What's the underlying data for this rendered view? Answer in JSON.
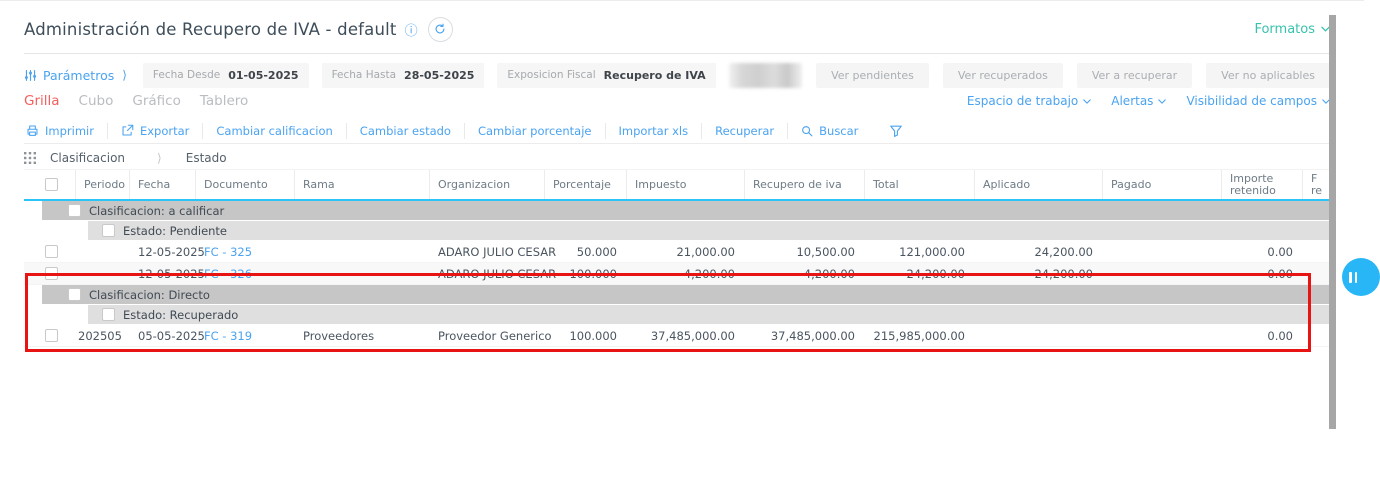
{
  "header": {
    "title": "Administración de Recupero de IVA - default",
    "formatos_menu": "Formatos"
  },
  "colors": {
    "accent_blue": "#4aa3f0",
    "formatos_teal": "#38c2ad",
    "active_tab_red": "#f4605e",
    "header_underline_cyan": "#29c5f6",
    "annotation_red": "#e81414",
    "group_row_dark": "#c6c6c6",
    "group_row_light": "#dfdfdf",
    "side_handle_blue": "#29b6f6"
  },
  "filter_bar": {
    "parametros_label": "Parámetros",
    "fields": [
      {
        "label": "Fecha Desde",
        "value": "01-05-2025"
      },
      {
        "label": "Fecha Hasta",
        "value": "28-05-2025"
      },
      {
        "label": "Exposicion Fiscal",
        "value": "Recupero de IVA"
      }
    ],
    "view_buttons": [
      "Ver pendientes",
      "Ver recuperados",
      "Ver a recuperar",
      "Ver no aplicables"
    ]
  },
  "tabs": {
    "active": "Grilla",
    "items": [
      "Grilla",
      "Cubo",
      "Gráfico",
      "Tablero"
    ]
  },
  "workspace_menus": [
    {
      "label": "Espacio de trabajo"
    },
    {
      "label": "Alertas"
    },
    {
      "label": "Visibilidad de campos"
    }
  ],
  "toolbar": {
    "items": [
      {
        "label": "Imprimir",
        "icon": "printer-icon"
      },
      {
        "label": "Exportar",
        "icon": "export-icon"
      },
      {
        "label": "Cambiar calificacion"
      },
      {
        "label": "Cambiar estado"
      },
      {
        "label": "Cambiar porcentaje"
      },
      {
        "label": "Importar xls"
      },
      {
        "label": "Recuperar"
      },
      {
        "label": "Buscar",
        "icon": "search-icon"
      }
    ]
  },
  "group_by": {
    "items": [
      "Clasificacion",
      "Estado"
    ]
  },
  "table": {
    "columns": [
      "",
      "Periodo",
      "Fecha",
      "Documento",
      "Rama",
      "Organizacion",
      "Porcentaje",
      "Impuesto",
      "Recupero de iva",
      "Total",
      "Aplicado",
      "Pagado",
      "Importe retenido",
      "F re"
    ],
    "rows": [
      {
        "type": "group1",
        "label": "Clasificacion: a calificar"
      },
      {
        "type": "group2",
        "label": "Estado: Pendiente"
      },
      {
        "type": "data",
        "zebra": false,
        "cells": {
          "periodo": "",
          "fecha": "12-05-2025",
          "documento": "FC - 325",
          "rama": "",
          "organizacion": "ADARO JULIO CESAR",
          "porcentaje": "50.000",
          "impuesto": "21,000.00",
          "recupero_de_iva": "10,500.00",
          "total": "121,000.00",
          "aplicado": "24,200.00",
          "pagado": "",
          "importe_retenido": "0.00",
          "f_re": ""
        }
      },
      {
        "type": "data",
        "zebra": true,
        "cells": {
          "periodo": "",
          "fecha": "12-05-2025",
          "documento": "FC - 326",
          "rama": "",
          "organizacion": "ADARO JULIO CESAR",
          "porcentaje": "100.000",
          "impuesto": "-4,200.00",
          "recupero_de_iva": "-4,200.00",
          "total": "-24,200.00",
          "aplicado": "24,200.00",
          "pagado": "",
          "importe_retenido": "0.00",
          "f_re": ""
        }
      },
      {
        "type": "group1",
        "label": "Clasificacion: Directo",
        "highlighted": true
      },
      {
        "type": "group2",
        "label": "Estado: Recuperado",
        "highlighted": true
      },
      {
        "type": "data",
        "zebra": false,
        "highlighted": true,
        "cells": {
          "periodo": "202505",
          "fecha": "05-05-2025",
          "documento": "FC - 319",
          "rama": "Proveedores",
          "organizacion": "Proveedor Generico",
          "porcentaje": "100.000",
          "impuesto": "37,485,000.00",
          "recupero_de_iva": "37,485,000.00",
          "total": "215,985,000.00",
          "aplicado": "",
          "pagado": "",
          "importe_retenido": "0.00",
          "f_re": ""
        }
      }
    ]
  }
}
